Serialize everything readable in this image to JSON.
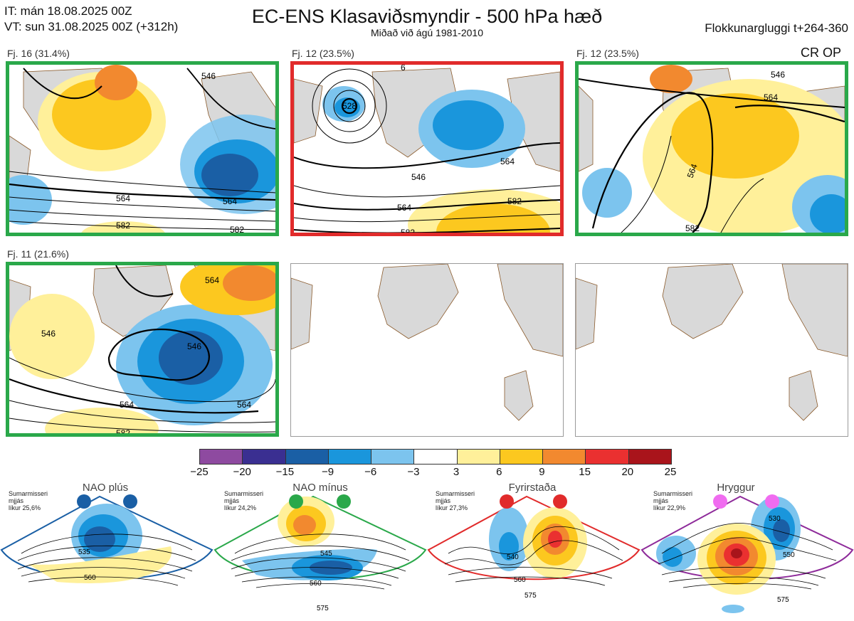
{
  "header": {
    "it_line": "IT: mán 18.08.2025 00Z",
    "vt_line": "VT: sun 31.08.2025 00Z  (+312h)",
    "title": "EC-ENS Klasaviðsmyndir - 500 hPa hæð",
    "subtitle": "Miðað við ágú 1981-2010",
    "window": "Flokkunargluggi t+264-360"
  },
  "clusters": [
    {
      "label": "Fj. 16 (31.4%)",
      "border": "green",
      "contours": [
        "564",
        "564",
        "582",
        "582",
        "546"
      ]
    },
    {
      "label": "Fj. 12 (23.5%)",
      "border": "red",
      "contours": [
        "528",
        "546",
        "564",
        "564",
        "582",
        "582",
        "6"
      ]
    },
    {
      "label": "Fj. 12 (23.5%)",
      "border": "green",
      "contours": [
        "546",
        "564",
        "564",
        "582"
      ]
    },
    {
      "label": "Fj. 11 (21.6%)",
      "border": "green",
      "contours": [
        "546",
        "546",
        "564",
        "564",
        "564",
        "582"
      ]
    }
  ],
  "cr_op": "CR OP",
  "colorbar": {
    "colors": [
      "#8e4aa0",
      "#3a2f91",
      "#1a5fa5",
      "#1a96dc",
      "#7cc4ee",
      "#ffffff",
      "#fff09a",
      "#fcc81f",
      "#f2892f",
      "#ea3030",
      "#a9141b"
    ],
    "ticks": [
      "−25",
      "−20",
      "−15",
      "−9",
      "−6",
      "−3",
      "3",
      "6",
      "9",
      "15",
      "20",
      "25"
    ]
  },
  "regimes": [
    {
      "name": "NAO plús",
      "season": "Sumarmisseri",
      "mean": "mjjás",
      "prob": "líkur 25,6%",
      "color": "#1a5fa5",
      "dot": "#1a5fa5",
      "labels": [
        "535",
        "560"
      ]
    },
    {
      "name": "NAO mínus",
      "season": "Sumarmisseri",
      "mean": "mjjás",
      "prob": "líkur 24,2%",
      "color": "#2aa84a",
      "dot": "#2aa84a",
      "labels": [
        "545",
        "560",
        "575"
      ]
    },
    {
      "name": "Fyrirstaða",
      "season": "Sumarmisseri",
      "mean": "mjjás",
      "prob": "líkur 27,3%",
      "color": "#e12b2b",
      "dot": "#e12b2b",
      "labels": [
        "540",
        "560",
        "575"
      ]
    },
    {
      "name": "Hryggur",
      "season": "Sumarmisseri",
      "mean": "mjjás",
      "prob": "líkur 22,9%",
      "color": "#8e2b9a",
      "dot": "#f06cf0",
      "labels": [
        "530",
        "550",
        "575"
      ]
    }
  ]
}
